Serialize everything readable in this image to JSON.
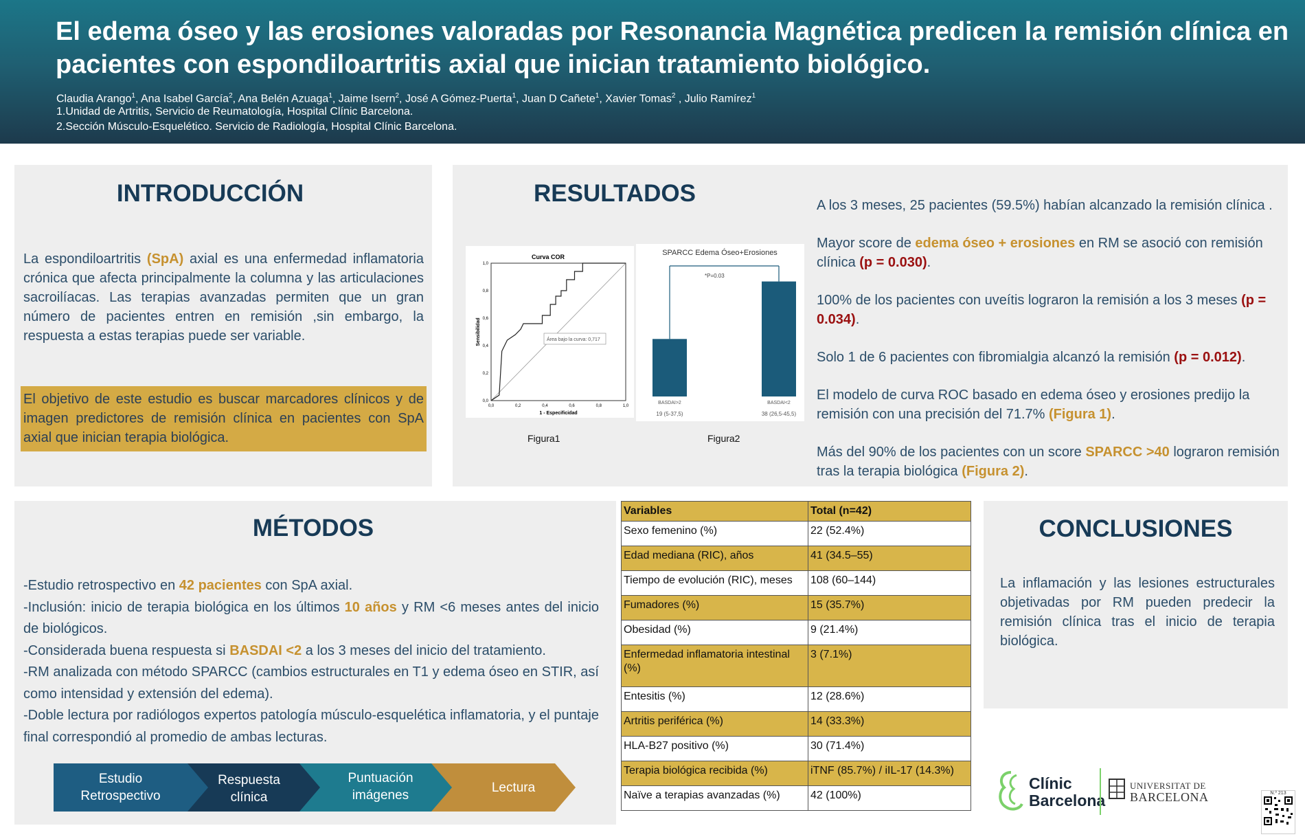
{
  "header": {
    "title": "El edema óseo y las erosiones valoradas por Resonancia Magnética predicen la remisión clínica en pacientes con espondiloartritis axial que inician tratamiento biológico.",
    "authors": [
      {
        "name": "Claudia Arango",
        "sup": "1"
      },
      {
        "name": "Ana Isabel García",
        "sup": "2"
      },
      {
        "name": "Ana Belén Azuaga",
        "sup": "1"
      },
      {
        "name": "Jaime Isern",
        "sup": "2"
      },
      {
        "name": "José A Gómez-Puerta",
        "sup": "1"
      },
      {
        "name": "Juan D Cañete",
        "sup": "1"
      },
      {
        "name": "Xavier Tomas",
        "sup": "2"
      },
      {
        "name": "Julio Ramírez",
        "sup": "1"
      }
    ],
    "affiliation_1": "1.Unidad de Artritis, Servicio de Reumatología, Hospital Clínic Barcelona.",
    "affiliation_2": "2.Sección Músculo-Esquelético. Servicio de Radiología, Hospital Clínic Barcelona."
  },
  "intro": {
    "title": "INTRODUCCIÓN",
    "p1_a": "La espondiloartritis ",
    "p1_spa": "(SpA)",
    "p1_b": " axial es una enfermedad inflamatoria crónica que afecta principalmente la columna y las articulaciones sacroilíacas. Las terapias avanzadas permiten que un gran número de pacientes entren en remisión ,sin embargo, la respuesta a estas terapias puede ser variable.",
    "objective": "El objetivo de este estudio es buscar marcadores clínicos y de imagen predictores de remisión clínica en pacientes con SpA axial que inician terapia biológica."
  },
  "results": {
    "title": "RESULTADOS",
    "r1": "A los 3 meses, 25 pacientes (59.5%) habían alcanzado la remisión clínica .",
    "r2_a": "Mayor score de ",
    "r2_gold": "edema óseo + erosiones",
    "r2_b": " en RM se asoció con remisión clínica ",
    "r2_p": "(p = 0.030)",
    "r2_end": ".",
    "r3_a": "100% de los pacientes con uveítis lograron la remisión a los 3 meses ",
    "r3_p": "(p = 0.034)",
    "r3_end": ".",
    "r4_a": "Solo 1 de 6 pacientes con fibromialgia alcanzó la remisión ",
    "r4_p": "(p = 0.012)",
    "r4_end": ".",
    "r5_a": "El modelo de curva ROC basado en edema óseo y erosiones predijo la remisión con una precisión del 71.7% ",
    "r5_fig": "(Figura 1)",
    "r5_end": ".",
    "r6_a": "Más del 90% de los pacientes con un score ",
    "r6_gold": "SPARCC >40",
    "r6_b": " lograron remisión tras la terapia biológica ",
    "r6_fig": "(Figura 2)",
    "r6_end": "."
  },
  "figure1": {
    "caption": "Figura1",
    "title": "Curva COR",
    "xlabel": "1 - Especificidad",
    "ylabel": "Sensibilidad",
    "ticks": [
      "0,0",
      "0,2",
      "0,4",
      "0,6",
      "0,8",
      "1,0"
    ],
    "annotation": "Área bajo la curva: 0,717"
  },
  "figure2": {
    "caption": "Figura2",
    "title": "SPARCC Edema Óseo+Erosiones",
    "annotation": "*P=0.03",
    "categories": [
      "BASDAI>2",
      "BASDAI<2"
    ],
    "sublabels": [
      "19 (5-37,5)",
      "38 (26,5-45,5)"
    ]
  },
  "chart_data": [
    {
      "type": "line",
      "title": "Curva COR",
      "xlabel": "1 - Especificidad",
      "ylabel": "Sensibilidad",
      "xlim": [
        0,
        1
      ],
      "ylim": [
        0,
        1
      ],
      "series": [
        {
          "x": [
            0.0,
            0.06,
            0.08,
            0.12,
            0.18,
            0.22,
            0.24,
            0.38,
            0.38,
            0.44,
            0.44,
            0.48,
            0.48,
            0.52,
            0.52,
            0.56,
            0.56,
            0.62,
            0.62,
            0.68,
            0.68,
            1.0
          ],
          "y": [
            0.0,
            0.04,
            0.36,
            0.44,
            0.48,
            0.52,
            0.56,
            0.56,
            0.62,
            0.62,
            0.7,
            0.7,
            0.76,
            0.76,
            0.8,
            0.8,
            0.88,
            0.88,
            0.94,
            0.94,
            1.0,
            1.0
          ]
        }
      ]
    },
    {
      "type": "bar",
      "title": "SPARCC Edema Óseo+Erosiones",
      "categories": [
        "BASDAI>2",
        "BASDAI<2"
      ],
      "values": [
        19,
        38
      ],
      "ylim": [
        0,
        42
      ],
      "colors": [
        "#1b5b7a",
        "#1b5b7a"
      ]
    }
  ],
  "methods": {
    "title": "MÉTODOS",
    "l1_a": "-Estudio retrospectivo en ",
    "l1_gold": "42 pacientes",
    "l1_b": " con SpA axial.",
    "l2_a": "-Inclusión: inicio de terapia biológica en los últimos ",
    "l2_gold": "10 años",
    "l2_b": " y RM <6 meses antes del inicio de biológicos.",
    "l3_a": "-Considerada buena respuesta si ",
    "l3_gold": "BASDAI <2",
    "l3_b": " a los 3 meses del inicio del tratamiento.",
    "l4": "-RM analizada con método SPARCC (cambios estructurales  en T1 y edema óseo en STIR, así como intensidad y extensión del edema).",
    "l5": "-Doble lectura por radiólogos expertos patología músculo-esquelética inflamatoria, y el puntaje final correspondió al promedio de ambas lecturas.",
    "flow": [
      "Estudio Retrospectivo",
      "Respuesta clínica",
      "Puntuación imágenes",
      "Lectura"
    ]
  },
  "table": {
    "header": [
      "Variables",
      "Total (n=42)"
    ],
    "rows": [
      [
        "Sexo femenino (%)",
        "22 (52.4%)"
      ],
      [
        "Edad mediana (RIC), años",
        "41 (34.5–55)"
      ],
      [
        "Tiempo de evolución (RIC), meses",
        "108 (60–144)"
      ],
      [
        "Fumadores (%)",
        "15 (35.7%)"
      ],
      [
        "Obesidad (%)",
        "9 (21.4%)"
      ],
      [
        "Enfermedad inflamatoria intestinal (%)",
        "3 (7.1%)"
      ],
      [
        "Entesitis (%)",
        "12 (28.6%)"
      ],
      [
        "Artritis periférica (%)",
        "14 (33.3%)"
      ],
      [
        "HLA-B27 positivo (%)",
        "30 (71.4%)"
      ],
      [
        "Terapia biológica recibida (%)",
        "iTNF (85.7%) / iIL-17 (14.3%)"
      ],
      [
        "Naïve a terapias avanzadas (%)",
        "42 (100%)"
      ]
    ]
  },
  "conclusions": {
    "title": "CONCLUSIONES",
    "text": "La inflamación y las lesiones estructurales objetivadas por RM pueden predecir la remisión clínica tras el inicio de terapia biológica."
  },
  "logos": {
    "clinic_1": "Clínic",
    "clinic_2": "Barcelona",
    "ub_1": "UNIVERSITAT DE",
    "ub_2": "BARCELONA",
    "poster_number": "N.º 213"
  },
  "colors": {
    "header_top": "#1c7688",
    "header_bottom": "#1d3a4c",
    "panel": "#eeeeee",
    "title": "#173a56",
    "text": "#2b4d69",
    "gold": "#c6912f",
    "red": "#9a1010",
    "table_gold": "#d8b54a"
  }
}
